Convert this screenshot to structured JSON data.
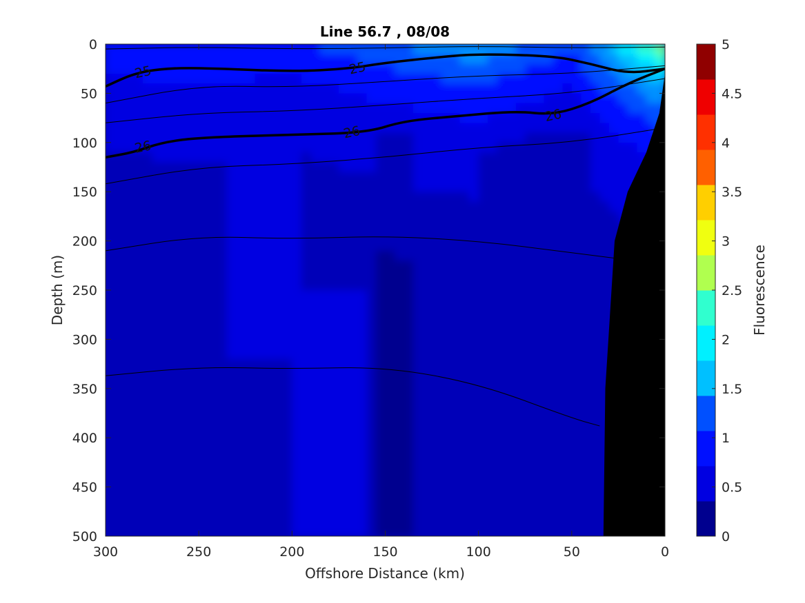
{
  "chart_data": {
    "type": "heatmap",
    "title": "Line 56.7 , 08/08",
    "xlabel": "Offshore Distance (km)",
    "ylabel": "Depth (m)",
    "colorbar_label": "Fluorescence",
    "xlim": [
      300,
      0
    ],
    "ylim": [
      0,
      500
    ],
    "x_ticks": [
      300,
      250,
      200,
      150,
      100,
      50,
      0
    ],
    "x_tick_labels": [
      "300",
      "250",
      "200",
      "150",
      "100",
      "50",
      "0"
    ],
    "y_ticks": [
      0,
      50,
      100,
      150,
      200,
      250,
      300,
      350,
      400,
      450,
      500
    ],
    "y_tick_labels": [
      "0",
      "50",
      "100",
      "150",
      "200",
      "250",
      "300",
      "350",
      "400",
      "450",
      "500"
    ],
    "colorbar_range": [
      0,
      5
    ],
    "colorbar_ticks": [
      0,
      0.5,
      1,
      1.5,
      2,
      2.5,
      3,
      3.5,
      4,
      4.5,
      5
    ],
    "colorbar_tick_labels": [
      "0",
      "0.5",
      "1",
      "1.5",
      "2",
      "2.5",
      "3",
      "3.5",
      "4",
      "4.5",
      "5"
    ],
    "colormap": [
      "#00008f",
      "#0000b8",
      "#0000e1",
      "#0010ff",
      "#0050ff",
      "#0090ff",
      "#00c0ff",
      "#00f0ff",
      "#30ffcf",
      "#70ff8f",
      "#b0ff4f",
      "#f0ff10",
      "#ffcf00",
      "#ff9f00",
      "#ff6000",
      "#ff3000",
      "#ef0000",
      "#c00000",
      "#900000"
    ],
    "field_levels": {
      "x_km": [
        300,
        250,
        200,
        150,
        100,
        50,
        0
      ],
      "depth_m": [
        0,
        50,
        100,
        200,
        300,
        400,
        500
      ],
      "surface_fluorescence": [
        1.0,
        1.1,
        1.0,
        1.3,
        1.6,
        1.1,
        2.7
      ],
      "deep_fluorescence": 0.4
    },
    "contours": [
      {
        "label": "25",
        "bold": true,
        "points": [
          [
            300,
            43
          ],
          [
            285,
            30
          ],
          [
            270,
            25
          ],
          [
            250,
            24
          ],
          [
            200,
            28
          ],
          [
            170,
            25
          ],
          [
            150,
            19
          ],
          [
            120,
            13
          ],
          [
            100,
            10
          ],
          [
            60,
            12
          ],
          [
            40,
            20
          ],
          [
            20,
            30
          ],
          [
            0,
            25
          ]
        ]
      },
      {
        "label": "26",
        "bold": true,
        "points": [
          [
            300,
            115
          ],
          [
            285,
            110
          ],
          [
            270,
            100
          ],
          [
            250,
            95
          ],
          [
            200,
            92
          ],
          [
            160,
            90
          ],
          [
            140,
            78
          ],
          [
            110,
            73
          ],
          [
            80,
            68
          ],
          [
            60,
            72
          ],
          [
            40,
            60
          ],
          [
            20,
            40
          ],
          [
            0,
            25
          ]
        ]
      },
      {
        "label": "",
        "bold": false,
        "points": [
          [
            300,
            5
          ],
          [
            250,
            3
          ],
          [
            200,
            5
          ],
          [
            150,
            4
          ],
          [
            100,
            2
          ],
          [
            50,
            4
          ],
          [
            0,
            3
          ]
        ]
      },
      {
        "label": "",
        "bold": false,
        "points": [
          [
            300,
            60
          ],
          [
            250,
            42
          ],
          [
            200,
            44
          ],
          [
            150,
            38
          ],
          [
            100,
            32
          ],
          [
            50,
            30
          ],
          [
            0,
            22
          ]
        ]
      },
      {
        "label": "",
        "bold": false,
        "points": [
          [
            300,
            80
          ],
          [
            250,
            70
          ],
          [
            200,
            68
          ],
          [
            150,
            62
          ],
          [
            100,
            55
          ],
          [
            50,
            50
          ],
          [
            0,
            35
          ]
        ]
      },
      {
        "label": "",
        "bold": false,
        "points": [
          [
            300,
            142
          ],
          [
            250,
            125
          ],
          [
            200,
            122
          ],
          [
            150,
            115
          ],
          [
            100,
            105
          ],
          [
            50,
            100
          ],
          [
            0,
            85
          ]
        ]
      },
      {
        "label": "",
        "bold": false,
        "points": [
          [
            300,
            210
          ],
          [
            250,
            195
          ],
          [
            200,
            198
          ],
          [
            150,
            195
          ],
          [
            100,
            200
          ],
          [
            50,
            212
          ],
          [
            25,
            218
          ]
        ]
      },
      {
        "label": "",
        "bold": false,
        "points": [
          [
            300,
            337
          ],
          [
            250,
            328
          ],
          [
            200,
            330
          ],
          [
            150,
            328
          ],
          [
            100,
            345
          ],
          [
            50,
            380
          ],
          [
            35,
            388
          ]
        ]
      }
    ],
    "bathymetry_polygon": [
      [
        33,
        500
      ],
      [
        32,
        350
      ],
      [
        27,
        200
      ],
      [
        20,
        150
      ],
      [
        10,
        110
      ],
      [
        3,
        70
      ],
      [
        0,
        30
      ],
      [
        0,
        500
      ]
    ]
  }
}
